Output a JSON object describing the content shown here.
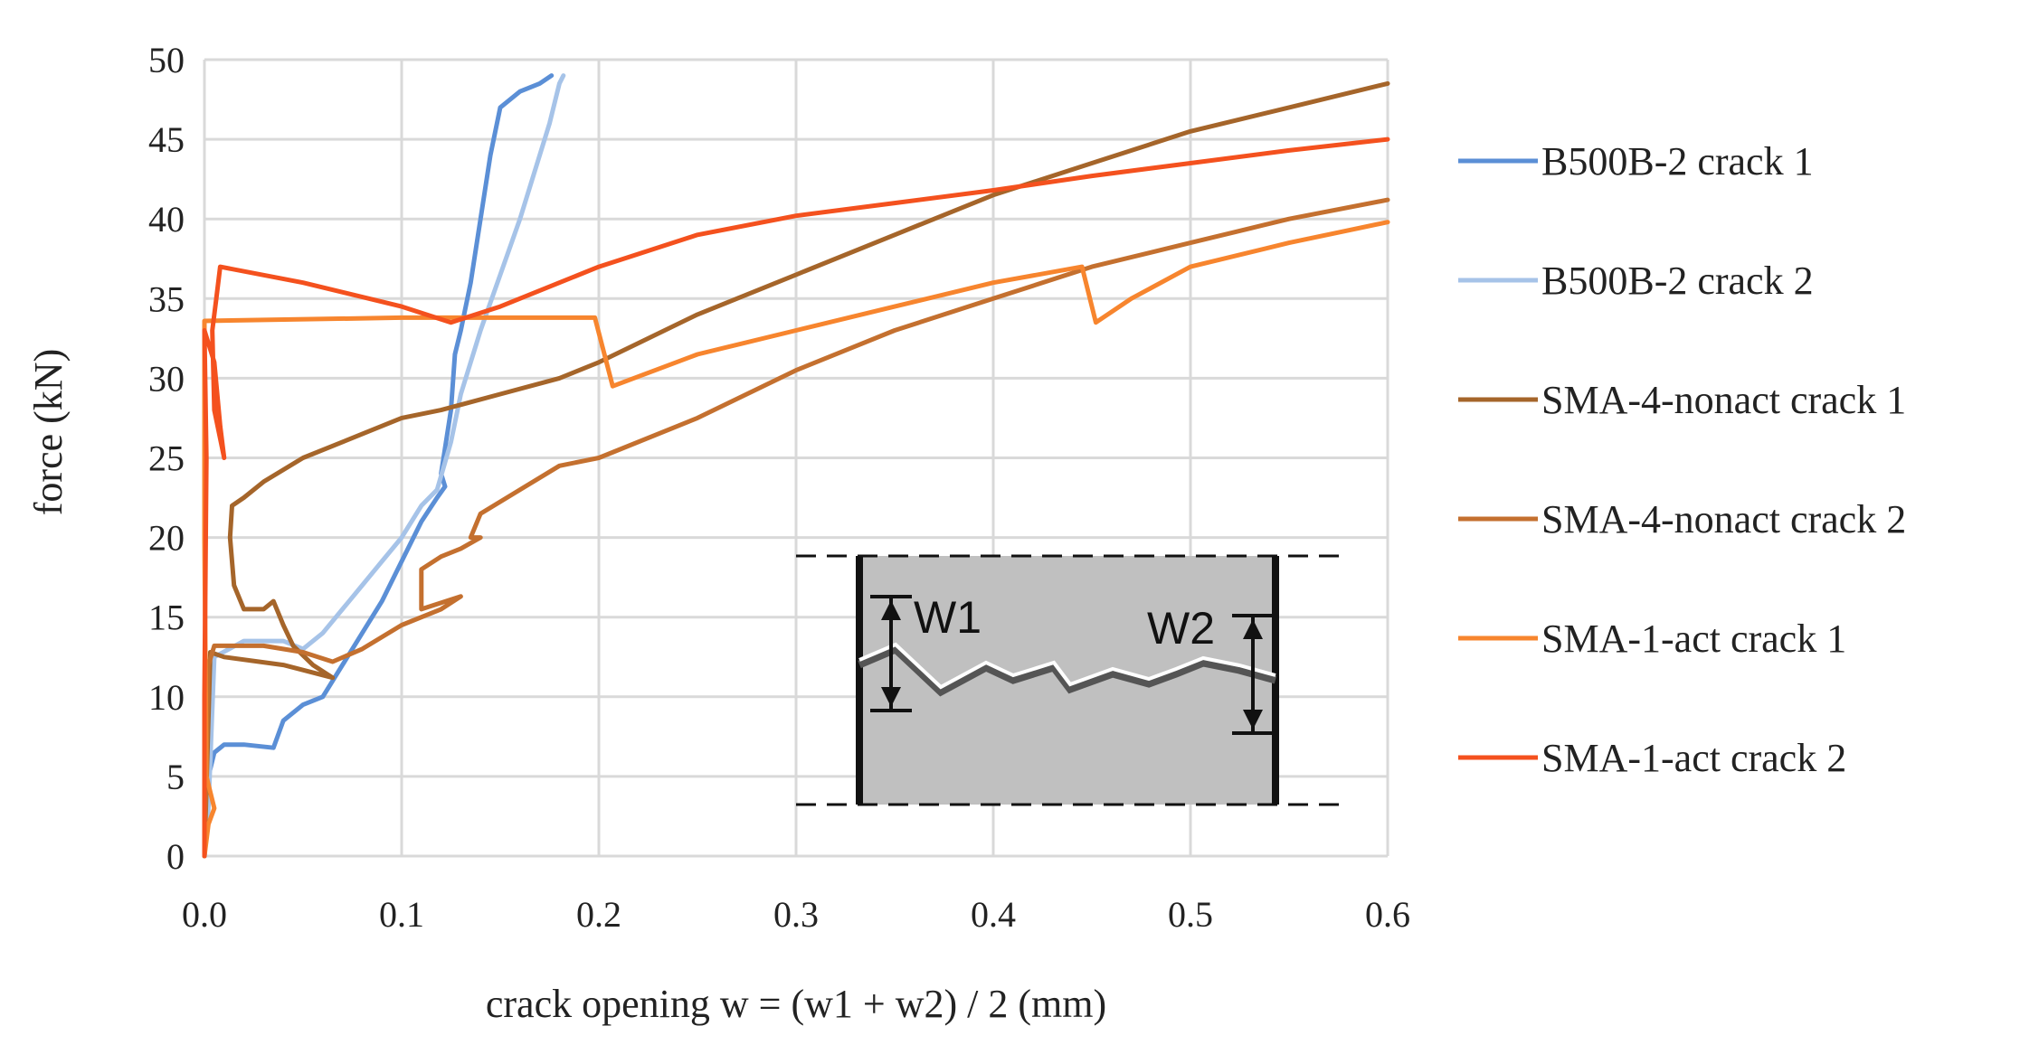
{
  "chart_data": {
    "type": "line",
    "title": "",
    "xlabel": "crack opening w = (w1 + w2) / 2 (mm)",
    "ylabel": "force (kN)",
    "xlim": [
      0,
      0.6
    ],
    "ylim": [
      0,
      50
    ],
    "grid": true,
    "legend_position": "right",
    "x_tick_labels": [
      "0.0",
      "0.1",
      "0.2",
      "0.3",
      "0.4",
      "0.5",
      "0.6"
    ],
    "x_tick_values": [
      0,
      0.1,
      0.2,
      0.3,
      0.4,
      0.5,
      0.6
    ],
    "y_tick_labels": [
      "0",
      "5",
      "10",
      "15",
      "20",
      "25",
      "30",
      "35",
      "40",
      "45",
      "50"
    ],
    "y_tick_values": [
      0,
      5,
      10,
      15,
      20,
      25,
      30,
      35,
      40,
      45,
      50
    ],
    "series": [
      {
        "name": "B500B-2 crack 1",
        "color": "#5B8FD6",
        "points": [
          [
            0,
            0
          ],
          [
            0.002,
            5
          ],
          [
            0.005,
            6.5
          ],
          [
            0.01,
            7
          ],
          [
            0.02,
            7
          ],
          [
            0.035,
            6.8
          ],
          [
            0.04,
            8.5
          ],
          [
            0.05,
            9.5
          ],
          [
            0.06,
            10
          ],
          [
            0.065,
            11
          ],
          [
            0.07,
            12
          ],
          [
            0.08,
            14
          ],
          [
            0.09,
            16
          ],
          [
            0.1,
            18.5
          ],
          [
            0.11,
            21
          ],
          [
            0.118,
            22.5
          ],
          [
            0.122,
            23.2
          ],
          [
            0.12,
            24
          ],
          [
            0.125,
            28
          ],
          [
            0.127,
            31.5
          ],
          [
            0.13,
            33
          ],
          [
            0.135,
            36
          ],
          [
            0.14,
            40
          ],
          [
            0.145,
            44
          ],
          [
            0.15,
            47
          ],
          [
            0.16,
            48
          ],
          [
            0.17,
            48.5
          ],
          [
            0.176,
            49
          ]
        ]
      },
      {
        "name": "B500B-2 crack 2",
        "color": "#A6C3E8",
        "points": [
          [
            0,
            0
          ],
          [
            0.002,
            3
          ],
          [
            0.005,
            12.5
          ],
          [
            0.02,
            13.5
          ],
          [
            0.04,
            13.5
          ],
          [
            0.05,
            13
          ],
          [
            0.06,
            14
          ],
          [
            0.07,
            15.5
          ],
          [
            0.08,
            17
          ],
          [
            0.09,
            18.5
          ],
          [
            0.1,
            20
          ],
          [
            0.11,
            22
          ],
          [
            0.118,
            23
          ],
          [
            0.125,
            26
          ],
          [
            0.13,
            29
          ],
          [
            0.135,
            31
          ],
          [
            0.14,
            33
          ],
          [
            0.15,
            36.5
          ],
          [
            0.16,
            40
          ],
          [
            0.17,
            44
          ],
          [
            0.175,
            46
          ],
          [
            0.18,
            48.5
          ],
          [
            0.182,
            49
          ]
        ]
      },
      {
        "name": "SMA-4-nonact crack 1",
        "color": "#A5652A",
        "points": [
          [
            0,
            0
          ],
          [
            0.003,
            12.8
          ],
          [
            0.01,
            12.5
          ],
          [
            0.04,
            12
          ],
          [
            0.065,
            11.2
          ],
          [
            0.055,
            12
          ],
          [
            0.045,
            13.2
          ],
          [
            0.04,
            14.5
          ],
          [
            0.035,
            16
          ],
          [
            0.03,
            15.5
          ],
          [
            0.02,
            15.5
          ],
          [
            0.015,
            17
          ],
          [
            0.013,
            20
          ],
          [
            0.014,
            22
          ],
          [
            0.02,
            22.5
          ],
          [
            0.03,
            23.5
          ],
          [
            0.05,
            25
          ],
          [
            0.08,
            26.5
          ],
          [
            0.1,
            27.5
          ],
          [
            0.12,
            28
          ],
          [
            0.15,
            29
          ],
          [
            0.18,
            30
          ],
          [
            0.2,
            31
          ],
          [
            0.25,
            34
          ],
          [
            0.3,
            36.5
          ],
          [
            0.35,
            39
          ],
          [
            0.4,
            41.5
          ],
          [
            0.45,
            43.5
          ],
          [
            0.5,
            45.5
          ],
          [
            0.55,
            47
          ],
          [
            0.6,
            48.5
          ]
        ]
      },
      {
        "name": "SMA-4-nonact crack 2",
        "color": "#C4702F",
        "points": [
          [
            0,
            0
          ],
          [
            0.002,
            12
          ],
          [
            0.005,
            13.2
          ],
          [
            0.03,
            13.2
          ],
          [
            0.05,
            12.8
          ],
          [
            0.065,
            12.2
          ],
          [
            0.08,
            13
          ],
          [
            0.1,
            14.5
          ],
          [
            0.12,
            15.5
          ],
          [
            0.13,
            16.3
          ],
          [
            0.11,
            15.5
          ],
          [
            0.11,
            18
          ],
          [
            0.12,
            18.8
          ],
          [
            0.13,
            19.3
          ],
          [
            0.14,
            20
          ],
          [
            0.135,
            20
          ],
          [
            0.14,
            21.5
          ],
          [
            0.16,
            23
          ],
          [
            0.18,
            24.5
          ],
          [
            0.2,
            25
          ],
          [
            0.25,
            27.5
          ],
          [
            0.3,
            30.5
          ],
          [
            0.35,
            33
          ],
          [
            0.4,
            35
          ],
          [
            0.45,
            37
          ],
          [
            0.5,
            38.5
          ],
          [
            0.55,
            40
          ],
          [
            0.6,
            41.2
          ]
        ]
      },
      {
        "name": "SMA-1-act crack 1",
        "color": "#F7852E",
        "points": [
          [
            0,
            0
          ],
          [
            0.002,
            2
          ],
          [
            0.005,
            3
          ],
          [
            0.001,
            5
          ],
          [
            0,
            20
          ],
          [
            0,
            33.6
          ],
          [
            0.1,
            33.8
          ],
          [
            0.198,
            33.8
          ],
          [
            0.207,
            29.5
          ],
          [
            0.25,
            31.5
          ],
          [
            0.3,
            33
          ],
          [
            0.35,
            34.5
          ],
          [
            0.4,
            36
          ],
          [
            0.445,
            37
          ],
          [
            0.452,
            33.5
          ],
          [
            0.47,
            35
          ],
          [
            0.5,
            37
          ],
          [
            0.55,
            38.5
          ],
          [
            0.6,
            39.8
          ]
        ]
      },
      {
        "name": "SMA-1-act crack 2",
        "color": "#F4511E",
        "points": [
          [
            0,
            0
          ],
          [
            0,
            10
          ],
          [
            0.001,
            25
          ],
          [
            0,
            33
          ],
          [
            0.005,
            31
          ],
          [
            0.008,
            27
          ],
          [
            0.01,
            25
          ],
          [
            0.005,
            28
          ],
          [
            0.004,
            33
          ],
          [
            0.006,
            35
          ],
          [
            0.008,
            37
          ],
          [
            0.05,
            36
          ],
          [
            0.1,
            34.5
          ],
          [
            0.125,
            33.5
          ],
          [
            0.15,
            34.5
          ],
          [
            0.2,
            37
          ],
          [
            0.25,
            39
          ],
          [
            0.3,
            40.2
          ],
          [
            0.35,
            41
          ],
          [
            0.4,
            41.8
          ],
          [
            0.45,
            42.7
          ],
          [
            0.5,
            43.5
          ],
          [
            0.55,
            44.3
          ],
          [
            0.6,
            45
          ]
        ]
      }
    ],
    "inset": {
      "labels": [
        "W1",
        "W2"
      ]
    }
  }
}
